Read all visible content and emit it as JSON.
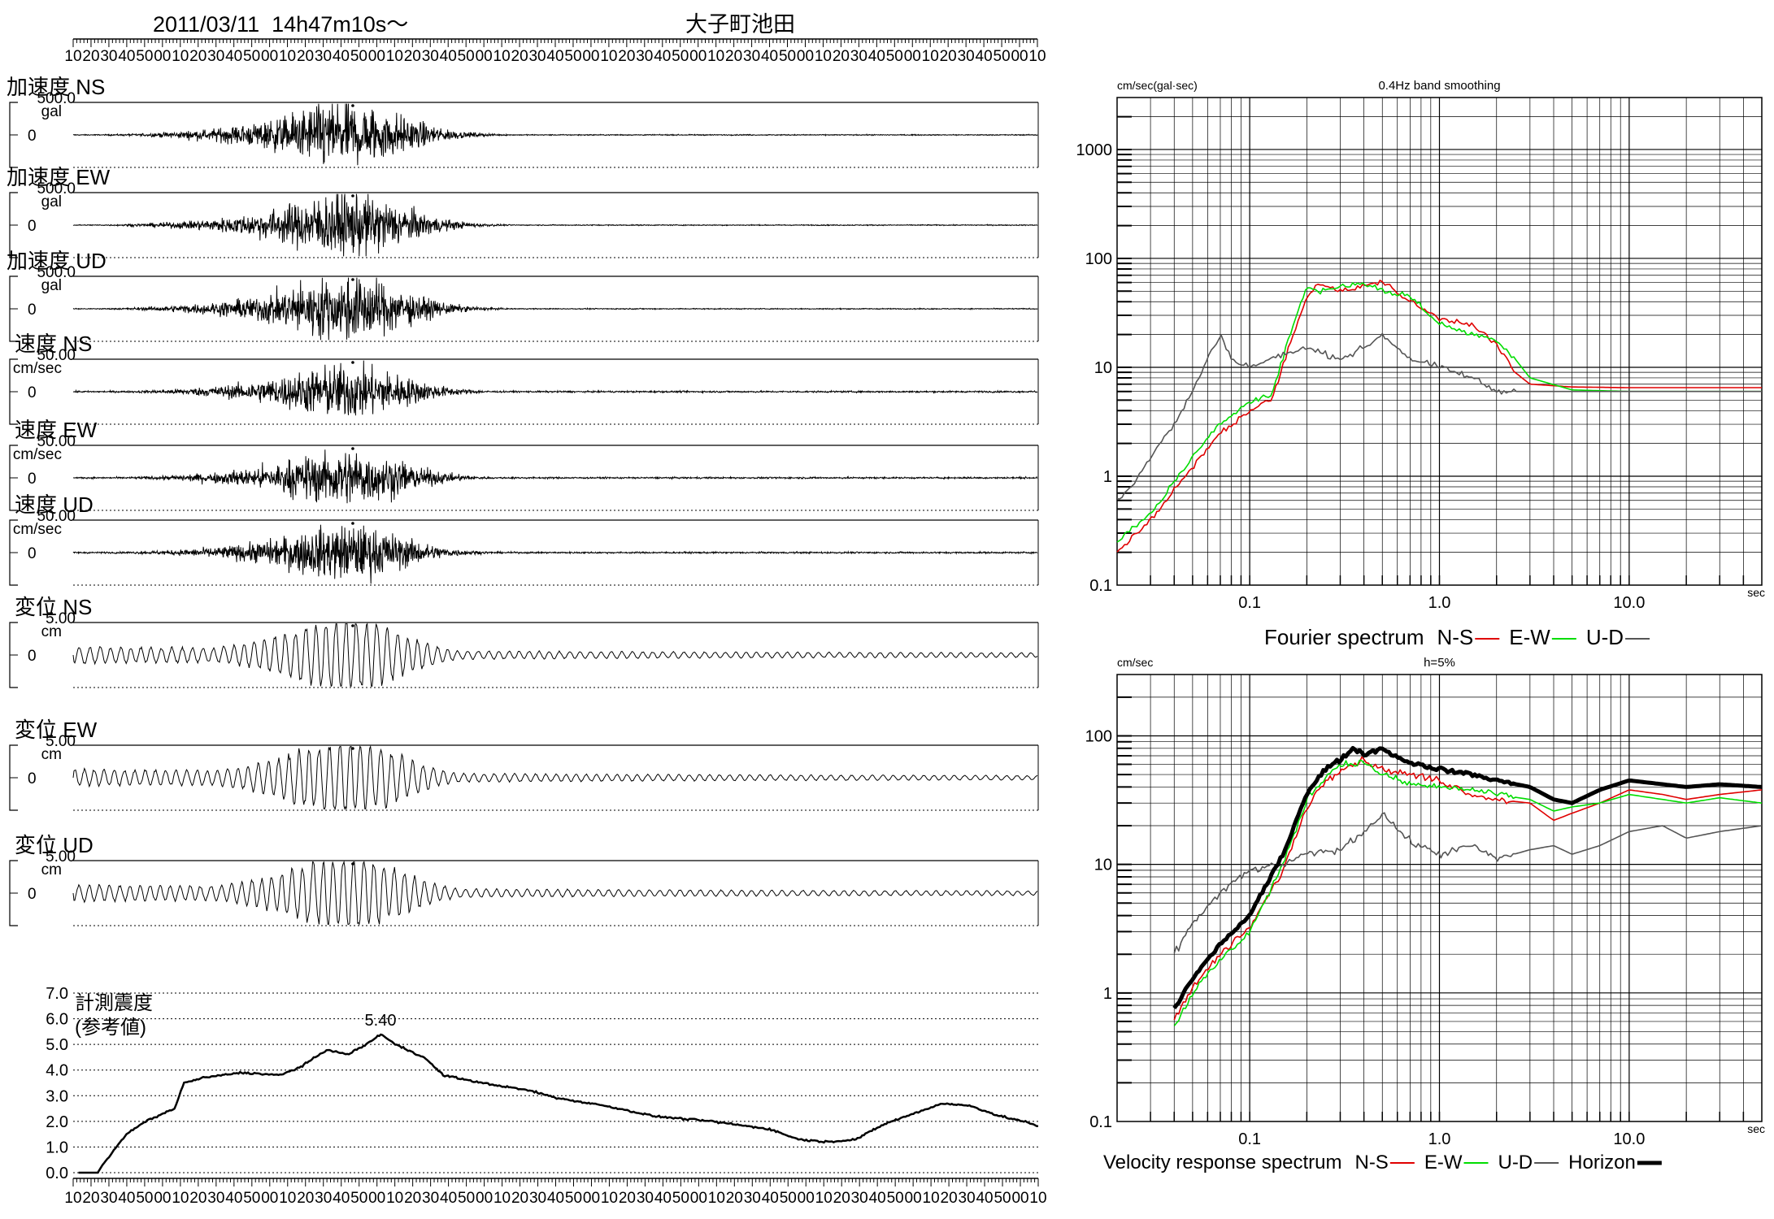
{
  "header": {
    "datetime": "2011/03/11  14h47m10s〜",
    "station": "大子町池田"
  },
  "time_ruler": {
    "labels": [
      "10",
      "20",
      "30",
      "40",
      "50",
      "00",
      "10",
      "20",
      "30",
      "40",
      "50",
      "00",
      "10",
      "20",
      "30",
      "40",
      "50",
      "00",
      "10",
      "20",
      "30",
      "40",
      "50",
      "00",
      "10",
      "20",
      "30",
      "40",
      "50",
      "00",
      "10",
      "20",
      "30",
      "40",
      "50",
      "00",
      "10",
      "20",
      "30",
      "40",
      "50",
      "00",
      "10",
      "20",
      "30",
      "40",
      "50",
      "00",
      "10",
      "20",
      "30",
      "40",
      "50",
      "00",
      "10"
    ]
  },
  "traces": [
    {
      "label": "加速度 NS",
      "max": "500.0",
      "unit": "gal",
      "zero": "0",
      "kind": "acc"
    },
    {
      "label": "加速度 EW",
      "max": "500.0",
      "unit": "gal",
      "zero": "0",
      "kind": "acc"
    },
    {
      "label": "加速度 UD",
      "max": "500.0",
      "unit": "gal",
      "zero": "0",
      "kind": "acc"
    },
    {
      "label": "速度 NS",
      "max": "50.00",
      "unit": "cm/sec",
      "zero": "0",
      "kind": "vel"
    },
    {
      "label": "速度 EW",
      "max": "50.00",
      "unit": "cm/sec",
      "zero": "0",
      "kind": "vel"
    },
    {
      "label": "速度 UD",
      "max": "50.00",
      "unit": "cm/sec",
      "zero": "0",
      "kind": "vel"
    },
    {
      "label": "変位 NS",
      "max": "5.00",
      "unit": "cm",
      "zero": "0",
      "kind": "dis"
    },
    {
      "label": "変位 EW",
      "max": "5.00",
      "unit": "cm",
      "zero": "0",
      "kind": "dis"
    },
    {
      "label": "変位 UD",
      "max": "5.00",
      "unit": "cm",
      "zero": "0",
      "kind": "dis"
    }
  ],
  "intensity": {
    "label_line1": "計測震度",
    "label_line2": "(参考値)",
    "peak_label": "5.40",
    "yticks": [
      "0.0",
      "1.0",
      "2.0",
      "3.0",
      "4.0",
      "5.0",
      "6.0",
      "7.0"
    ],
    "xlabels": [
      "10",
      "20",
      "30",
      "40",
      "50",
      "00",
      "10",
      "20",
      "30",
      "40",
      "50",
      "00",
      "10",
      "20",
      "30",
      "40",
      "50",
      "00",
      "10",
      "20",
      "30",
      "40",
      "50",
      "00",
      "10",
      "20",
      "30",
      "40",
      "50",
      "00",
      "10",
      "20",
      "30",
      "40",
      "50",
      "00",
      "10",
      "20",
      "30",
      "40",
      "50",
      "00",
      "10",
      "20",
      "30",
      "40",
      "50",
      "00",
      "10",
      "20",
      "30",
      "40",
      "50",
      "00",
      "10"
    ]
  },
  "chart_data": [
    {
      "type": "line",
      "title": "Fourier spectrum",
      "subtitle": "0.4Hz band smoothing",
      "ylabel": "cm/sec(gal·sec)",
      "xlabel": "sec",
      "x_scale": "log",
      "y_scale": "log",
      "xlim": [
        0.02,
        50
      ],
      "ylim": [
        0.1,
        3000
      ],
      "yticks": [
        "0.1",
        "1",
        "10",
        "100",
        "1000"
      ],
      "xticks": [
        "0.1",
        "1.0",
        "10.0"
      ],
      "legend": [
        "N-S",
        "E-W",
        "U-D"
      ],
      "series": [
        {
          "name": "N-S",
          "color": "#e00000",
          "x": [
            0.02,
            0.03,
            0.05,
            0.07,
            0.1,
            0.13,
            0.17,
            0.2,
            0.23,
            0.3,
            0.4,
            0.5,
            0.7,
            1.0,
            1.5,
            2.0,
            2.5,
            3.0,
            5.0,
            10,
            20,
            50
          ],
          "y": [
            0.2,
            0.4,
            1.2,
            2.5,
            4,
            5,
            20,
            45,
            60,
            50,
            55,
            62,
            40,
            28,
            25,
            16,
            9,
            7,
            6.6,
            6.5,
            6.5,
            6.5
          ]
        },
        {
          "name": "E-W",
          "color": "#00dd00",
          "x": [
            0.02,
            0.03,
            0.05,
            0.07,
            0.1,
            0.13,
            0.17,
            0.2,
            0.23,
            0.3,
            0.4,
            0.5,
            0.7,
            1.0,
            1.5,
            2.0,
            2.5,
            3.0,
            5.0,
            10,
            20,
            50
          ],
          "y": [
            0.25,
            0.45,
            1.5,
            3,
            5,
            5.5,
            25,
            55,
            50,
            55,
            60,
            50,
            45,
            25,
            20,
            18,
            12,
            8,
            6.2,
            6,
            6,
            6
          ]
        },
        {
          "name": "U-D",
          "color": "#555555",
          "x": [
            0.02,
            0.025,
            0.03,
            0.04,
            0.05,
            0.06,
            0.07,
            0.08,
            0.1,
            0.13,
            0.17,
            0.2,
            0.3,
            0.4,
            0.5,
            0.7,
            1.0,
            1.5,
            2.0,
            3.0,
            5.0,
            10,
            50
          ],
          "y": [
            0.6,
            0.9,
            1.5,
            3,
            6,
            12,
            20,
            12,
            10,
            12,
            14,
            15,
            12,
            15,
            20,
            12,
            10,
            8,
            6,
            6,
            6,
            6,
            6
          ]
        }
      ]
    },
    {
      "type": "line",
      "title": "Velocity response spectrum",
      "subtitle": "h=5%",
      "ylabel": "cm/sec",
      "xlabel": "sec",
      "x_scale": "log",
      "y_scale": "log",
      "xlim": [
        0.02,
        50
      ],
      "ylim": [
        0.1,
        300
      ],
      "yticks": [
        "0.1",
        "1",
        "10",
        "100"
      ],
      "xticks": [
        "0.1",
        "1.0",
        "10.0"
      ],
      "legend": [
        "N-S",
        "E-W",
        "U-D",
        "Horizon"
      ],
      "series": [
        {
          "name": "N-S",
          "color": "#e00000",
          "x": [
            0.04,
            0.05,
            0.07,
            0.1,
            0.15,
            0.2,
            0.25,
            0.3,
            0.4,
            0.5,
            0.7,
            1.0,
            1.5,
            2.0,
            3.0,
            4.0,
            5.0,
            7.0,
            10,
            15,
            20,
            30,
            50
          ],
          "y": [
            0.65,
            1.1,
            2,
            3.2,
            9,
            28,
            45,
            55,
            65,
            55,
            50,
            45,
            35,
            32,
            30,
            22,
            25,
            30,
            38,
            35,
            32,
            35,
            38
          ]
        },
        {
          "name": "E-W",
          "color": "#00dd00",
          "x": [
            0.04,
            0.05,
            0.07,
            0.1,
            0.15,
            0.2,
            0.25,
            0.3,
            0.4,
            0.5,
            0.7,
            1.0,
            1.5,
            2.0,
            3.0,
            4.0,
            5.0,
            7.0,
            10,
            15,
            20,
            30,
            50
          ],
          "y": [
            0.55,
            1,
            1.8,
            3,
            10,
            32,
            48,
            60,
            62,
            50,
            42,
            40,
            38,
            35,
            32,
            26,
            28,
            30,
            35,
            32,
            30,
            33,
            30
          ]
        },
        {
          "name": "U-D",
          "color": "#555555",
          "x": [
            0.04,
            0.05,
            0.07,
            0.1,
            0.15,
            0.2,
            0.3,
            0.4,
            0.5,
            0.7,
            1.0,
            1.5,
            2.0,
            3.0,
            4.0,
            5.0,
            7.0,
            10,
            15,
            20,
            30,
            50
          ],
          "y": [
            2,
            3.5,
            6,
            9,
            10,
            12,
            13,
            18,
            25,
            15,
            12,
            14,
            11,
            13,
            14,
            12,
            14,
            18,
            20,
            16,
            18,
            20
          ]
        },
        {
          "name": "Horizon",
          "color": "#000000",
          "x": [
            0.04,
            0.05,
            0.07,
            0.1,
            0.15,
            0.2,
            0.25,
            0.3,
            0.35,
            0.4,
            0.5,
            0.6,
            0.7,
            1.0,
            1.5,
            2.0,
            3.0,
            4.0,
            5.0,
            7.0,
            10,
            15,
            20,
            30,
            50
          ],
          "y": [
            0.75,
            1.3,
            2.4,
            4,
            12,
            36,
            55,
            65,
            80,
            72,
            80,
            68,
            62,
            55,
            50,
            45,
            40,
            32,
            30,
            38,
            45,
            42,
            40,
            42,
            40
          ]
        }
      ]
    }
  ]
}
